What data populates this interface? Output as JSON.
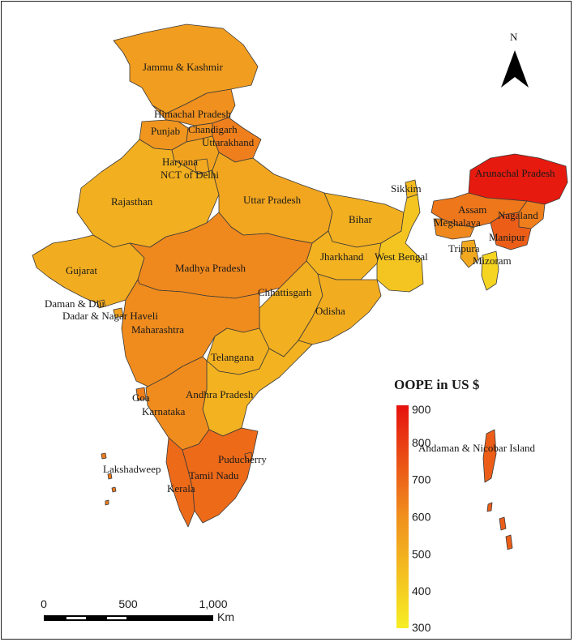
{
  "north_label": "N",
  "legend": {
    "title": "OOPE in US $",
    "ticks": [
      900,
      800,
      700,
      600,
      500,
      400,
      300
    ],
    "min": 300,
    "max": 900,
    "color_low": "#f7ee24",
    "color_mid": "#f0901e",
    "color_high": "#e5120e"
  },
  "scale_bar": {
    "ticks": [
      "0",
      "500",
      "1,000"
    ],
    "unit": "Km"
  },
  "regions": [
    {
      "key": "jk",
      "label": "Jammu & Kashmir",
      "value": 560
    },
    {
      "key": "hp",
      "label": "Himachal Pradesh",
      "value": 600
    },
    {
      "key": "pb",
      "label": "Punjab",
      "value": 580
    },
    {
      "key": "ch",
      "label": "Chandigarh",
      "value": 600
    },
    {
      "key": "uk",
      "label": "Uttarakhand",
      "value": 640
    },
    {
      "key": "hr",
      "label": "Haryana",
      "value": 540
    },
    {
      "key": "dl",
      "label": "NCT of Delhi",
      "value": 520
    },
    {
      "key": "rj",
      "label": "Rajasthan",
      "value": 500
    },
    {
      "key": "up",
      "label": "Uttar Pradesh",
      "value": 530
    },
    {
      "key": "br",
      "label": "Bihar",
      "value": 500
    },
    {
      "key": "sk",
      "label": "Sikkim",
      "value": 470
    },
    {
      "key": "ar",
      "label": "Arunachal Pradesh",
      "value": 880
    },
    {
      "key": "as",
      "label": "Assam",
      "value": 660
    },
    {
      "key": "ml",
      "label": "Meghalaya",
      "value": 620
    },
    {
      "key": "nl",
      "label": "Nagaland",
      "value": 640
    },
    {
      "key": "mn",
      "label": "Manipur",
      "value": 720
    },
    {
      "key": "tr",
      "label": "Tripura",
      "value": 520
    },
    {
      "key": "mz",
      "label": "Mizoram",
      "value": 380
    },
    {
      "key": "jh",
      "label": "Jharkhand",
      "value": 490
    },
    {
      "key": "wb",
      "label": "West Bengal",
      "value": 430
    },
    {
      "key": "gj",
      "label": "Gujarat",
      "value": 510
    },
    {
      "key": "mp",
      "label": "Madhya Pradesh",
      "value": 620
    },
    {
      "key": "cg",
      "label": "Chhattisgarh",
      "value": 500
    },
    {
      "key": "od",
      "label": "Odisha",
      "value": 510
    },
    {
      "key": "dd",
      "label": "Daman & Diu",
      "value": 520
    },
    {
      "key": "dnh",
      "label": "Dadar & Nagar Haveli",
      "value": 540
    },
    {
      "key": "mh",
      "label": "Maharashtra",
      "value": 610
    },
    {
      "key": "tg",
      "label": "Telangana",
      "value": 500
    },
    {
      "key": "ap",
      "label": "Andhra Pradesh",
      "value": 490
    },
    {
      "key": "ga",
      "label": "Goa",
      "value": 640
    },
    {
      "key": "ka",
      "label": "Karnataka",
      "value": 610
    },
    {
      "key": "ld",
      "label": "Lakshadweep",
      "value": 650
    },
    {
      "key": "py",
      "label": "Puducherry",
      "value": 690
    },
    {
      "key": "tn",
      "label": "Tamil Nadu",
      "value": 690
    },
    {
      "key": "kl",
      "label": "Kerala",
      "value": 690
    },
    {
      "key": "an",
      "label": "Andaman & Nicobar Island",
      "value": 720
    }
  ]
}
